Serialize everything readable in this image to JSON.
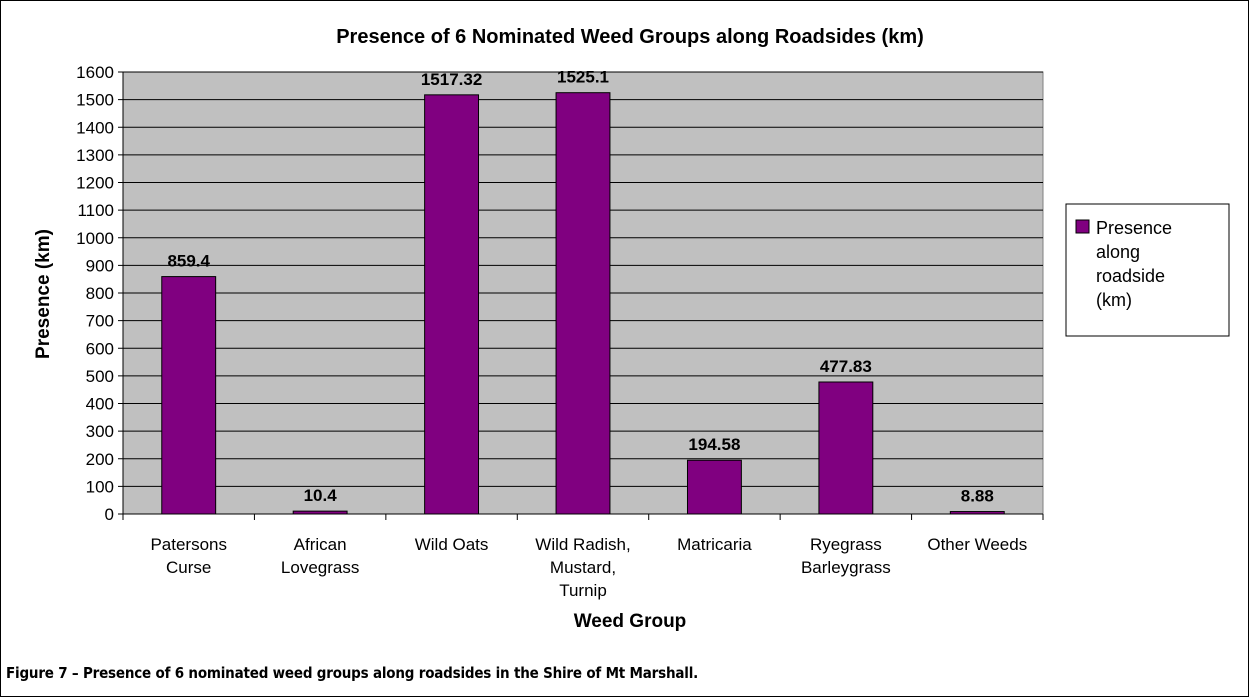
{
  "chart_data": {
    "type": "bar",
    "title": "Presence of 6 Nominated Weed Groups along Roadsides (km)",
    "xlabel": "Weed Group",
    "ylabel": "Presence (km)",
    "ylim": [
      0,
      1600
    ],
    "yticks": [
      0,
      100,
      200,
      300,
      400,
      500,
      600,
      700,
      800,
      900,
      1000,
      1100,
      1200,
      1300,
      1400,
      1500,
      1600
    ],
    "categories": [
      [
        "Patersons",
        "Curse"
      ],
      [
        "African",
        "Lovegrass"
      ],
      [
        "Wild Oats"
      ],
      [
        "Wild Radish,",
        "Mustard,",
        "Turnip"
      ],
      [
        "Matricaria"
      ],
      [
        "Ryegrass",
        "Barleygrass"
      ],
      [
        "Other Weeds"
      ]
    ],
    "series": [
      {
        "name": "Presence along roadside (km)",
        "values": [
          859.4,
          10.4,
          1517.32,
          1525.1,
          194.58,
          477.83,
          8.88
        ],
        "data_labels": [
          "859.4",
          "10.4",
          "1517.32",
          "1525.1",
          "194.58",
          "477.83",
          "8.88"
        ]
      }
    ],
    "legend": {
      "position": "right",
      "lines": [
        "Presence",
        "along",
        "roadside",
        "(km)"
      ]
    },
    "grid": true,
    "colors": {
      "bar": "#800080",
      "plot_background": "#c0c0c0",
      "gridline": "#000000"
    }
  },
  "caption": "Figure 7 – Presence of 6 nominated weed groups along roadsides in the Shire of Mt Marshall."
}
